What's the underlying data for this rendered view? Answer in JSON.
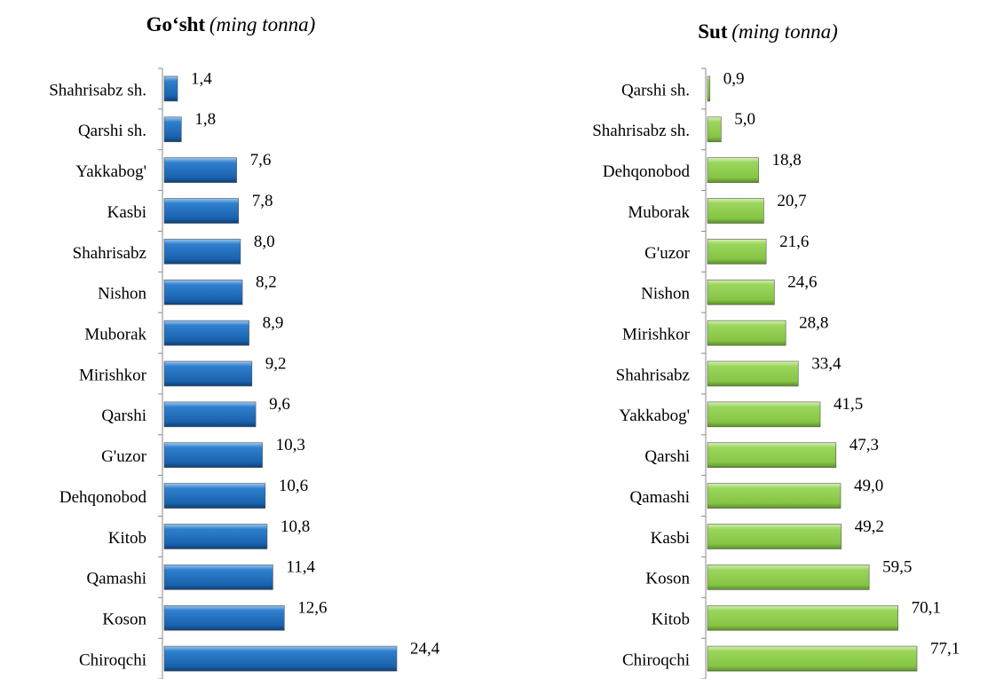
{
  "chart_data": [
    {
      "type": "bar",
      "orientation": "horizontal",
      "title": "Go‘sht",
      "subtitle": "(ming tonna)",
      "color": "#1f6fc0",
      "categories": [
        "Shahrisabz sh.",
        "Qarshi sh.",
        "Yakkabog'",
        "Kasbi",
        "Shahrisabz",
        "Nishon",
        "Muborak",
        "Mirishkor",
        "Qarshi",
        "G'uzor",
        "Dehqonobod",
        "Kitob",
        "Qamashi",
        "Koson",
        "Chiroqchi"
      ],
      "values": [
        1.4,
        1.8,
        7.6,
        7.8,
        8.0,
        8.2,
        8.9,
        9.2,
        9.6,
        10.3,
        10.6,
        10.8,
        11.4,
        12.6,
        24.4
      ],
      "value_labels": [
        "1,4",
        "1,8",
        "7,6",
        "7,8",
        "8,0",
        "8,2",
        "8,9",
        "9,2",
        "9,6",
        "10,3",
        "10,6",
        "10,8",
        "11,4",
        "12,6",
        "24,4"
      ]
    },
    {
      "type": "bar",
      "orientation": "horizontal",
      "title": "Sut",
      "subtitle": "(ming tonna)",
      "color": "#92d050",
      "categories": [
        "Qarshi sh.",
        "Shahrisabz sh.",
        "Dehqonobod",
        "Muborak",
        "G'uzor",
        "Nishon",
        "Mirishkor",
        "Shahrisabz",
        "Yakkabog'",
        "Qarshi",
        "Qamashi",
        "Kasbi",
        "Koson",
        "Kitob",
        "Chiroqchi"
      ],
      "values": [
        0.9,
        5.0,
        18.8,
        20.7,
        21.6,
        24.6,
        28.8,
        33.4,
        41.5,
        47.3,
        49.0,
        49.2,
        59.5,
        70.1,
        77.1
      ],
      "value_labels": [
        "0,9",
        "5,0",
        "18,8",
        "20,7",
        "21,6",
        "24,6",
        "28,8",
        "33,4",
        "41,5",
        "47,3",
        "49,0",
        "49,2",
        "59,5",
        "70,1",
        "77,1"
      ]
    }
  ]
}
